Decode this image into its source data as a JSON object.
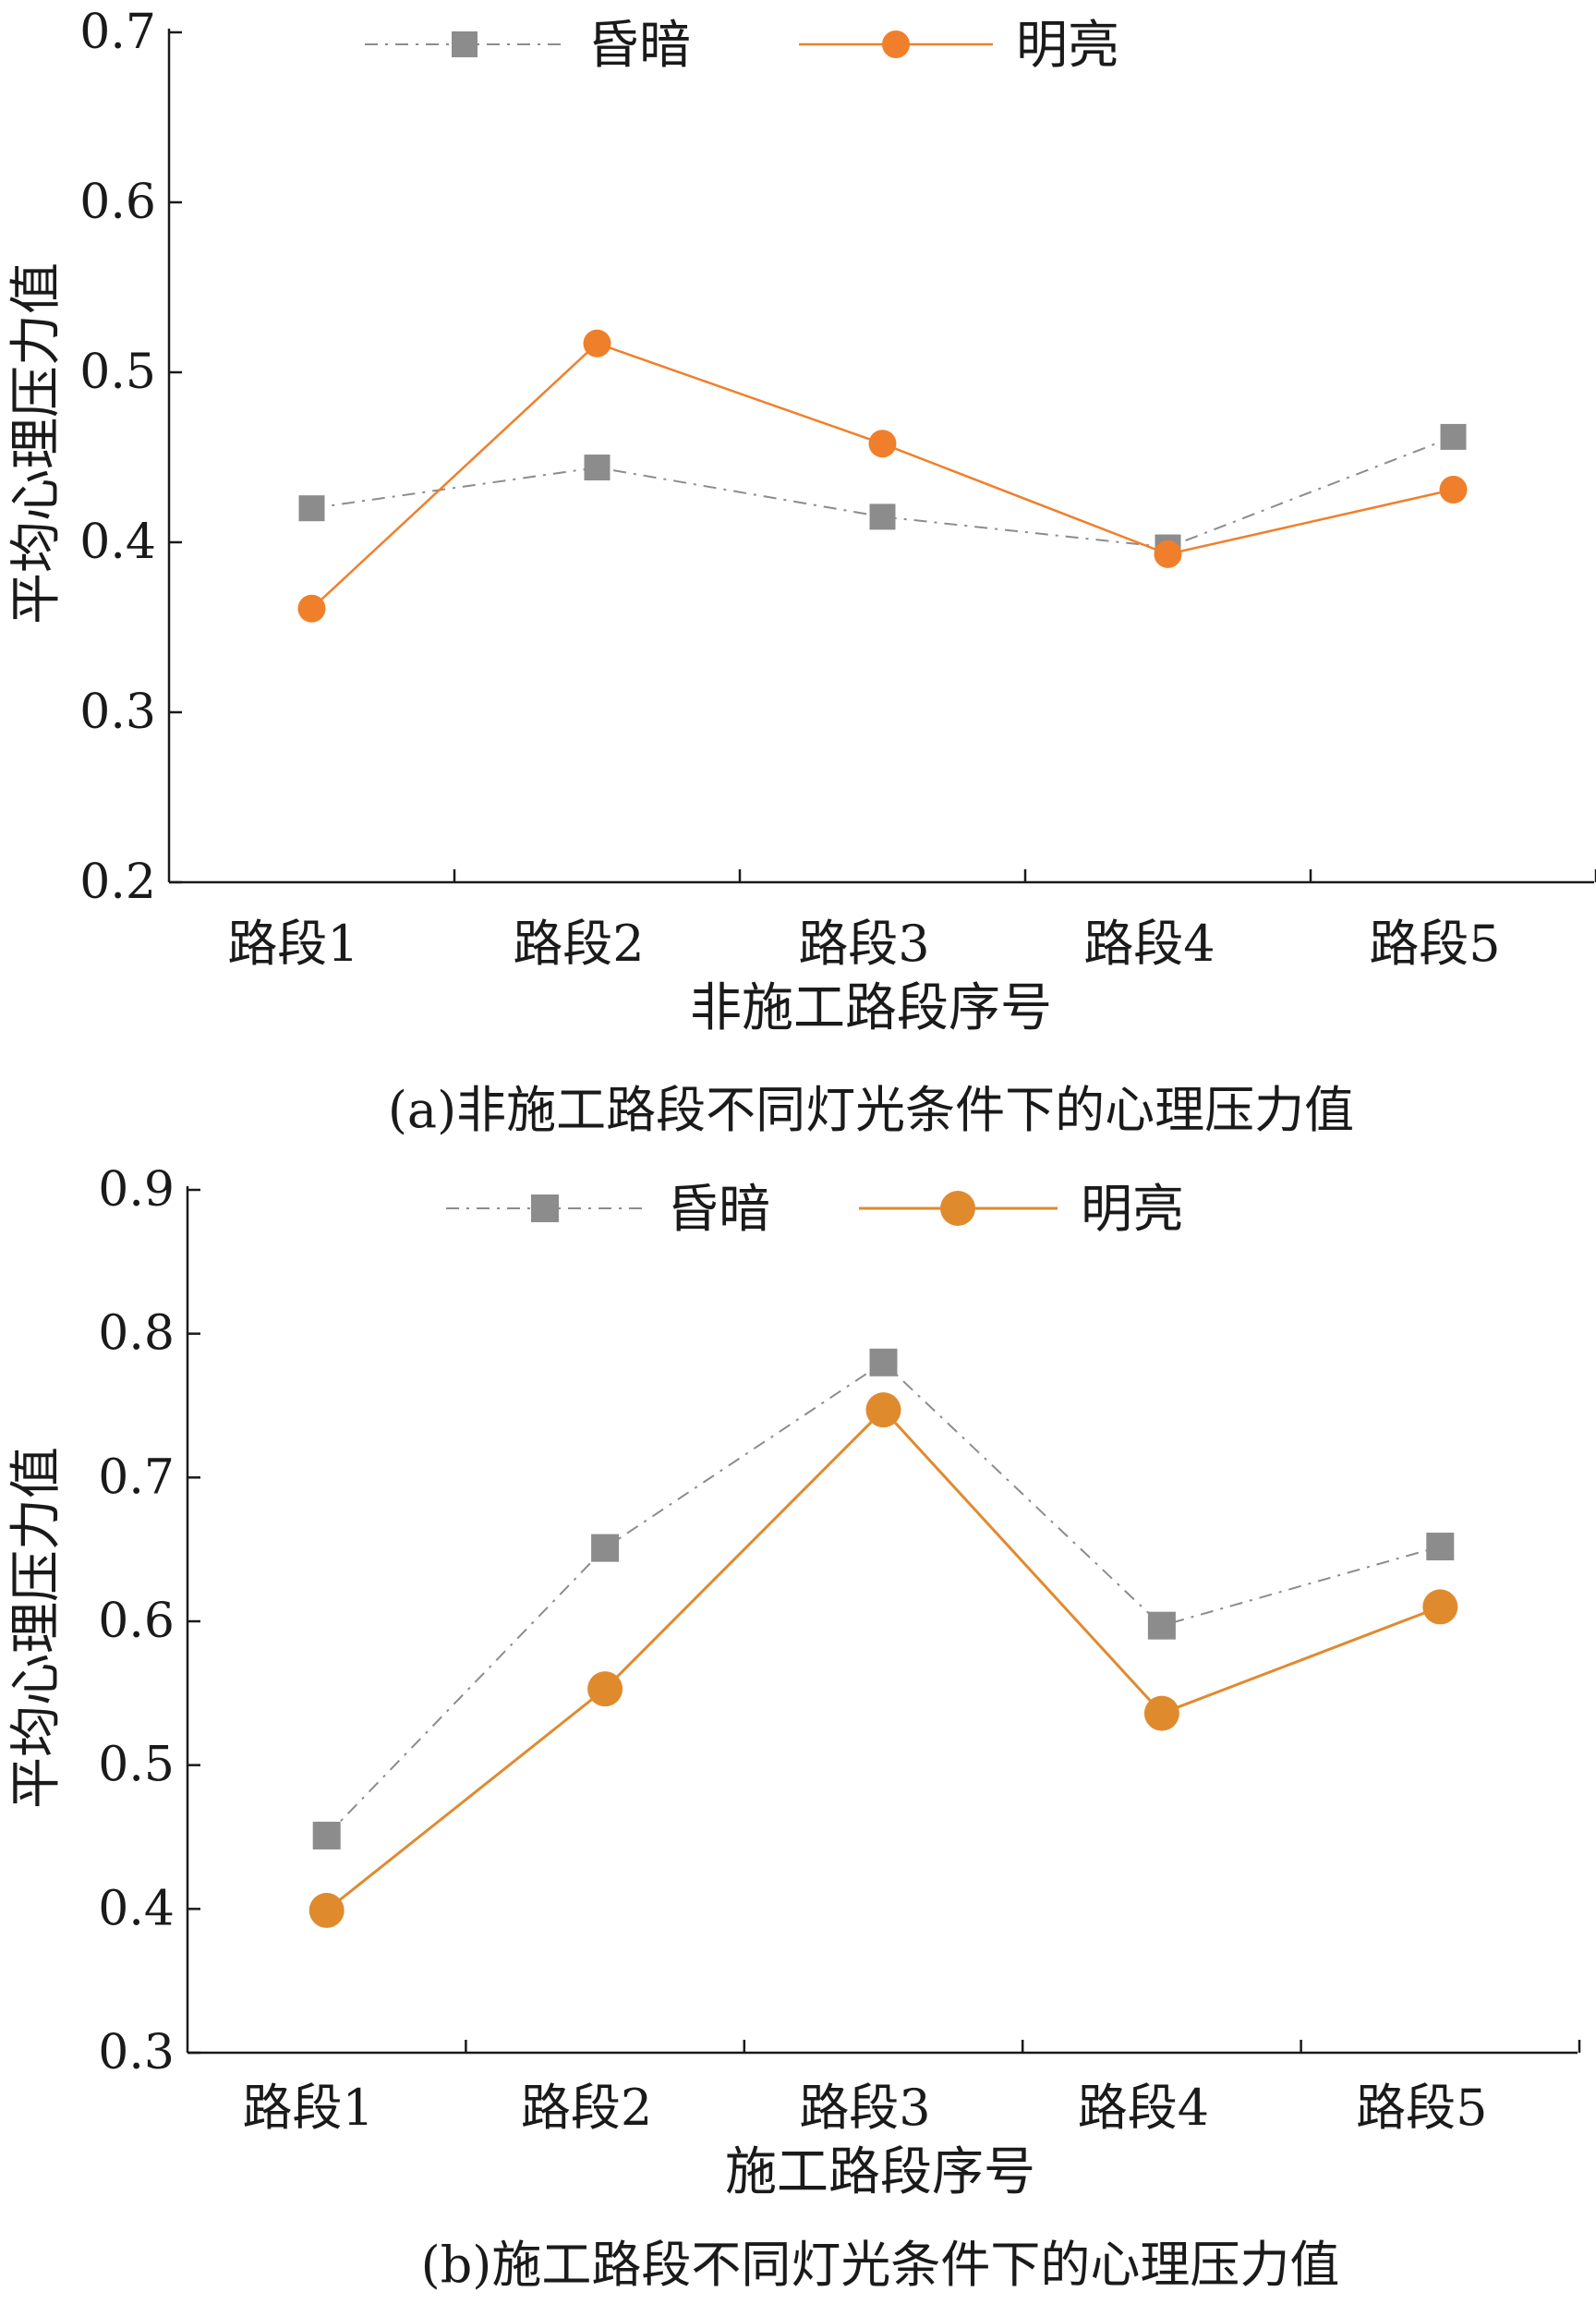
{
  "figure": {
    "caption_a": "(a)非施工路段不同灯光条件下的心理压力值",
    "caption_b": "(b)施工路段不同灯光条件下的心理压力值"
  },
  "colors": {
    "dim": "#8c8c8c",
    "bright_a": "#f07f2b",
    "bright_b": "#e08a2e",
    "axis": "#1a1a1a"
  },
  "chart_data": [
    {
      "type": "line",
      "categories": [
        "路段1",
        "路段2",
        "路段3",
        "路段4",
        "路段5"
      ],
      "series": [
        {
          "name": "昏暗",
          "values": [
            0.42,
            0.444,
            0.415,
            0.397,
            0.462
          ]
        },
        {
          "name": "明亮",
          "values": [
            0.361,
            0.517,
            0.458,
            0.393,
            0.431
          ]
        }
      ],
      "title": "",
      "xlabel": "非施工路段序号",
      "ylabel": "平均心理压力值",
      "ylim": [
        0.2,
        0.7
      ],
      "yticks": [
        "0.2",
        "0.3",
        "0.4",
        "0.5",
        "0.6",
        "0.7"
      ],
      "grid": false,
      "legend": "top"
    },
    {
      "type": "line",
      "categories": [
        "路段1",
        "路段2",
        "路段3",
        "路段4",
        "路段5"
      ],
      "series": [
        {
          "name": "昏暗",
          "values": [
            0.451,
            0.651,
            0.78,
            0.597,
            0.652
          ]
        },
        {
          "name": "明亮",
          "values": [
            0.399,
            0.553,
            0.747,
            0.536,
            0.61
          ]
        }
      ],
      "title": "",
      "xlabel": "施工路段序号",
      "ylabel": "平均心理压力值",
      "ylim": [
        0.3,
        0.9
      ],
      "yticks": [
        "0.3",
        "0.4",
        "0.5",
        "0.6",
        "0.7",
        "0.8",
        "0.9"
      ],
      "grid": false,
      "legend": "top"
    }
  ]
}
